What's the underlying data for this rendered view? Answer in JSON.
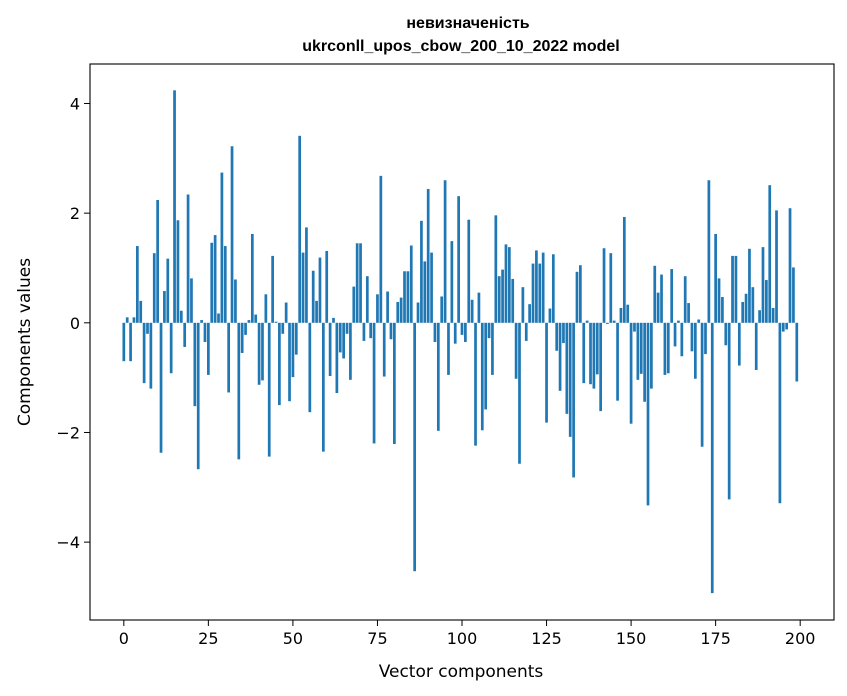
{
  "chart_data": {
    "type": "bar",
    "title_line1": "невизначеність",
    "title_line2": "ukrconll_upos_cbow_200_10_2022 model",
    "xlabel": "Vector components",
    "ylabel": "Components values",
    "xlim": [
      -10,
      210
    ],
    "ylim": [
      -5.42,
      4.72
    ],
    "xticks": [
      0,
      25,
      50,
      75,
      100,
      125,
      150,
      175,
      200
    ],
    "yticks": [
      4,
      2,
      0,
      -2,
      -4
    ],
    "ytick_labels": [
      "4",
      "2",
      "0",
      "−2",
      "−4"
    ],
    "grid": false,
    "bar_color": "#1f77b4",
    "x": [
      0,
      1,
      2,
      3,
      4,
      5,
      6,
      7,
      8,
      9,
      10,
      11,
      12,
      13,
      14,
      15,
      16,
      17,
      18,
      19,
      20,
      21,
      22,
      23,
      24,
      25,
      26,
      27,
      28,
      29,
      30,
      31,
      32,
      33,
      34,
      35,
      36,
      37,
      38,
      39,
      40,
      41,
      42,
      43,
      44,
      45,
      46,
      47,
      48,
      49,
      50,
      51,
      52,
      53,
      54,
      55,
      56,
      57,
      58,
      59,
      60,
      61,
      62,
      63,
      64,
      65,
      66,
      67,
      68,
      69,
      70,
      71,
      72,
      73,
      74,
      75,
      76,
      77,
      78,
      79,
      80,
      81,
      82,
      83,
      84,
      85,
      86,
      87,
      88,
      89,
      90,
      91,
      92,
      93,
      94,
      95,
      96,
      97,
      98,
      99,
      100,
      101,
      102,
      103,
      104,
      105,
      106,
      107,
      108,
      109,
      110,
      111,
      112,
      113,
      114,
      115,
      116,
      117,
      118,
      119,
      120,
      121,
      122,
      123,
      124,
      125,
      126,
      127,
      128,
      129,
      130,
      131,
      132,
      133,
      134,
      135,
      136,
      137,
      138,
      139,
      140,
      141,
      142,
      143,
      144,
      145,
      146,
      147,
      148,
      149,
      150,
      151,
      152,
      153,
      154,
      155,
      156,
      157,
      158,
      159,
      160,
      161,
      162,
      163,
      164,
      165,
      166,
      167,
      168,
      169,
      170,
      171,
      172,
      173,
      174,
      175,
      176,
      177,
      178,
      179,
      180,
      181,
      182,
      183,
      184,
      185,
      186,
      187,
      188,
      189,
      190,
      191,
      192,
      193,
      194,
      195,
      196,
      197,
      198,
      199
    ],
    "values": [
      -0.7,
      0.1,
      -0.7,
      0.1,
      1.4,
      0.4,
      -1.1,
      -0.2,
      -1.2,
      1.27,
      2.24,
      -2.37,
      0.58,
      1.17,
      -0.92,
      4.24,
      1.87,
      0.22,
      -0.44,
      2.34,
      0.81,
      -1.52,
      -2.67,
      0.05,
      -0.35,
      -0.95,
      1.46,
      1.6,
      0.17,
      2.74,
      1.4,
      -1.27,
      3.22,
      0.79,
      -2.49,
      -0.55,
      -0.22,
      0.05,
      1.62,
      0.15,
      -1.13,
      -1.05,
      0.52,
      -2.44,
      1.22,
      0.02,
      -1.5,
      -0.2,
      0.37,
      -1.43,
      -0.99,
      -0.58,
      3.41,
      1.28,
      1.74,
      -1.63,
      0.95,
      0.4,
      1.19,
      -2.35,
      1.31,
      -0.97,
      0.09,
      -1.28,
      -0.54,
      -0.65,
      -0.2,
      -1.04,
      0.66,
      1.45,
      1.45,
      -0.33,
      0.85,
      -0.28,
      -2.2,
      0.52,
      2.68,
      -0.98,
      0.57,
      -0.3,
      -2.21,
      0.38,
      0.46,
      0.94,
      0.94,
      1.41,
      -4.53,
      0.37,
      1.86,
      1.12,
      2.44,
      1.28,
      -0.35,
      -1.97,
      0.48,
      2.6,
      -0.95,
      1.49,
      -0.38,
      2.31,
      -0.22,
      -0.35,
      1.88,
      0.42,
      -2.24,
      0.55,
      -1.96,
      -1.58,
      -0.28,
      -0.95,
      1.96,
      0.85,
      0.97,
      1.43,
      1.38,
      0.8,
      -1.02,
      -2.57,
      0.65,
      -0.33,
      0.34,
      1.08,
      1.32,
      1.08,
      1.28,
      -1.82,
      0.26,
      1.25,
      -0.51,
      -1.24,
      -0.37,
      -1.66,
      -2.08,
      -2.82,
      0.93,
      1.05,
      -1.1,
      0.04,
      -1.12,
      -1.2,
      -0.94,
      -1.61,
      1.36,
      -0.02,
      1.27,
      0.04,
      -1.42,
      0.27,
      1.93,
      0.33,
      -1.84,
      -0.16,
      -1.04,
      -0.93,
      -1.44,
      -3.33,
      -1.2,
      1.04,
      0.55,
      0.88,
      -0.95,
      -0.92,
      0.98,
      -0.43,
      0.04,
      -0.61,
      0.85,
      0.36,
      -0.52,
      -1.02,
      0.06,
      -2.26,
      -0.57,
      2.6,
      -4.93,
      1.62,
      0.81,
      0.47,
      -0.41,
      -3.22,
      1.22,
      1.22,
      -0.78,
      0.38,
      0.53,
      1.35,
      0.65,
      -0.86,
      0.23,
      1.38,
      0.78,
      2.51,
      0.27,
      2.05,
      -3.29,
      -0.16,
      -0.12,
      2.09,
      1.01,
      -1.07
    ]
  }
}
